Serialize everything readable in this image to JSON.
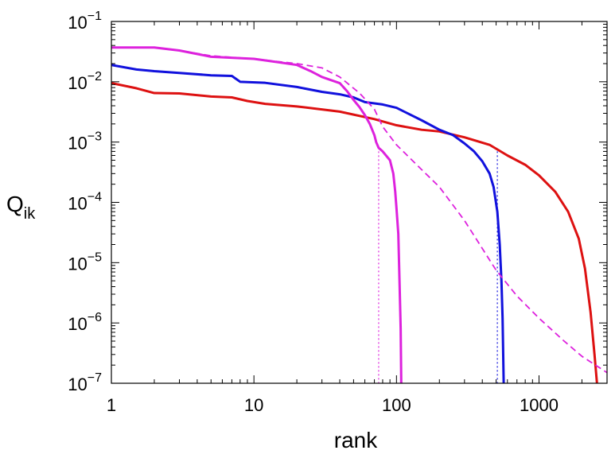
{
  "chart_data": {
    "type": "line",
    "title": "",
    "xlabel": "rank",
    "ylabel": "Q",
    "ylabel_subscript": "ik",
    "xscale": "log",
    "yscale": "log",
    "xlim": [
      1,
      3000
    ],
    "ylim": [
      1e-07,
      0.1
    ],
    "grid": false,
    "legend": "none",
    "x_ticks": [
      {
        "value": 1,
        "label": "1"
      },
      {
        "value": 10,
        "label": "10"
      },
      {
        "value": 100,
        "label": "100"
      },
      {
        "value": 1000,
        "label": "1000"
      }
    ],
    "y_ticks": [
      {
        "value": 1e-07,
        "base": "10",
        "exp": "−7"
      },
      {
        "value": 1e-06,
        "base": "10",
        "exp": "−6"
      },
      {
        "value": 1e-05,
        "base": "10",
        "exp": "−5"
      },
      {
        "value": 0.0001,
        "base": "10",
        "exp": "−4"
      },
      {
        "value": 0.001,
        "base": "10",
        "exp": "−3"
      },
      {
        "value": 0.01,
        "base": "10",
        "exp": "−2"
      },
      {
        "value": 0.1,
        "base": "10",
        "exp": "−1"
      }
    ],
    "series": [
      {
        "color": "#dd1111",
        "style": "solid",
        "points": [
          [
            1,
            0.0095
          ],
          [
            1.5,
            0.0078
          ],
          [
            2,
            0.0065
          ],
          [
            3,
            0.0064
          ],
          [
            5,
            0.0057
          ],
          [
            7,
            0.0055
          ],
          [
            9,
            0.0048
          ],
          [
            12,
            0.0043
          ],
          [
            20,
            0.0039
          ],
          [
            40,
            0.0032
          ],
          [
            70,
            0.0024
          ],
          [
            100,
            0.0019
          ],
          [
            150,
            0.0016
          ],
          [
            200,
            0.0015
          ],
          [
            300,
            0.0012
          ],
          [
            450,
            0.0009
          ],
          [
            600,
            0.0006
          ],
          [
            800,
            0.00042
          ],
          [
            1000,
            0.00028
          ],
          [
            1300,
            0.00015
          ],
          [
            1600,
            7e-05
          ],
          [
            1900,
            2.5e-05
          ],
          [
            2100,
            8e-06
          ],
          [
            2300,
            1.5e-06
          ],
          [
            2450,
            3e-07
          ],
          [
            2550,
            1e-07
          ]
        ]
      },
      {
        "color": "#1111dd",
        "style": "solid",
        "points": [
          [
            1,
            0.019
          ],
          [
            1.5,
            0.016
          ],
          [
            2,
            0.015
          ],
          [
            3,
            0.014
          ],
          [
            5,
            0.0128
          ],
          [
            7,
            0.0125
          ],
          [
            8,
            0.01
          ],
          [
            12,
            0.0096
          ],
          [
            20,
            0.0082
          ],
          [
            30,
            0.0068
          ],
          [
            40,
            0.0062
          ],
          [
            50,
            0.0055
          ],
          [
            60,
            0.0046
          ],
          [
            80,
            0.0042
          ],
          [
            100,
            0.0037
          ],
          [
            150,
            0.0023
          ],
          [
            200,
            0.0016
          ],
          [
            250,
            0.0013
          ],
          [
            300,
            0.00095
          ],
          [
            350,
            0.0007
          ],
          [
            400,
            0.00048
          ],
          [
            450,
            0.0003
          ],
          [
            480,
            0.00018
          ],
          [
            510,
            7e-05
          ],
          [
            530,
            2e-05
          ],
          [
            545,
            5e-06
          ],
          [
            555,
            1.2e-06
          ],
          [
            565,
            1e-07
          ]
        ]
      },
      {
        "color": "#dd22dd",
        "style": "solid",
        "points": [
          [
            1,
            0.037
          ],
          [
            2,
            0.037
          ],
          [
            3,
            0.033
          ],
          [
            5,
            0.026
          ],
          [
            10,
            0.024
          ],
          [
            15,
            0.021
          ],
          [
            20,
            0.019
          ],
          [
            25,
            0.015
          ],
          [
            30,
            0.012
          ],
          [
            40,
            0.0095
          ],
          [
            45,
            0.007
          ],
          [
            50,
            0.005
          ],
          [
            55,
            0.0038
          ],
          [
            60,
            0.0028
          ],
          [
            65,
            0.002
          ],
          [
            70,
            0.0013
          ],
          [
            72,
            0.001
          ],
          [
            75,
            0.0008
          ],
          [
            80,
            0.0007
          ],
          [
            90,
            0.0005
          ],
          [
            95,
            0.0003
          ],
          [
            98,
            0.00015
          ],
          [
            100,
            8e-05
          ],
          [
            103,
            3e-05
          ],
          [
            105,
            5e-06
          ],
          [
            107,
            8e-07
          ],
          [
            108,
            1e-07
          ]
        ]
      },
      {
        "color": "#dd22dd",
        "style": "dashed",
        "points": [
          [
            1,
            0.037
          ],
          [
            2,
            0.037
          ],
          [
            3,
            0.033
          ],
          [
            5,
            0.027
          ],
          [
            10,
            0.024
          ],
          [
            20,
            0.02
          ],
          [
            30,
            0.017
          ],
          [
            40,
            0.012
          ],
          [
            55,
            0.0065
          ],
          [
            70,
            0.0035
          ],
          [
            80,
            0.0018
          ],
          [
            100,
            0.0009
          ],
          [
            150,
            0.00035
          ],
          [
            200,
            0.00018
          ],
          [
            300,
            5e-05
          ],
          [
            500,
            7.5e-06
          ],
          [
            700,
            2.8e-06
          ],
          [
            1000,
            1.2e-06
          ],
          [
            1500,
            5e-07
          ],
          [
            2000,
            2.8e-07
          ],
          [
            3000,
            1.5e-07
          ]
        ]
      }
    ],
    "vlines": [
      {
        "x": 75,
        "color": "#dd22dd",
        "style": "dotted"
      },
      {
        "x": 510,
        "color": "#1111dd",
        "style": "dotted"
      }
    ]
  }
}
